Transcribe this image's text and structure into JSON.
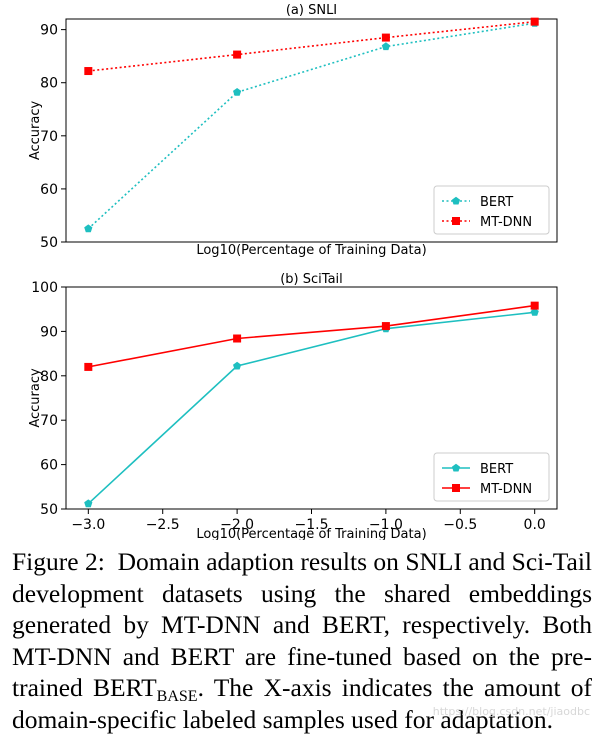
{
  "chart_data": [
    {
      "type": "line",
      "title": "(a) SNLI",
      "xlabel": "Log10(Percentage of Training Data)",
      "ylabel": "Accuracy",
      "x": [
        -3.0,
        -2.0,
        -1.0,
        0.0
      ],
      "xlim": [
        -3.15,
        0.15
      ],
      "ylim": [
        50,
        92
      ],
      "xticks": [],
      "yticks": [
        50,
        60,
        70,
        80,
        90
      ],
      "line_style": "dotted",
      "legend_position": "lower right",
      "grid": false,
      "series": [
        {
          "name": "BERT",
          "values": [
            52.5,
            78.2,
            86.8,
            91.2
          ],
          "color": "#1ebfc0",
          "marker": "pentagon"
        },
        {
          "name": "MT-DNN",
          "values": [
            82.2,
            85.3,
            88.5,
            91.5
          ],
          "color": "#ff0000",
          "marker": "square"
        }
      ]
    },
    {
      "type": "line",
      "title": "(b) SciTail",
      "xlabel": "Log10(Percentage of Training Data)",
      "ylabel": "Accuracy",
      "x": [
        -3.0,
        -2.0,
        -1.0,
        0.0
      ],
      "xlim": [
        -3.15,
        0.15
      ],
      "ylim": [
        50,
        100
      ],
      "xticks": [
        -3.0,
        -2.5,
        -2.0,
        -1.5,
        -1.0,
        -0.5,
        0.0
      ],
      "xtick_labels": [
        "−3.0",
        "−2.5",
        "−2.0",
        "−1.5",
        "−1.0",
        "−0.5",
        "0.0"
      ],
      "yticks": [
        50,
        60,
        70,
        80,
        90,
        100
      ],
      "line_style": "solid",
      "legend_position": "lower right",
      "grid": false,
      "series": [
        {
          "name": "BERT",
          "values": [
            51.2,
            82.2,
            90.6,
            94.3
          ],
          "color": "#1ebfc0",
          "marker": "pentagon"
        },
        {
          "name": "MT-DNN",
          "values": [
            82.0,
            88.4,
            91.2,
            95.8
          ],
          "color": "#ff0000",
          "marker": "square"
        }
      ]
    }
  ],
  "caption": {
    "lead": "Figure 2:  Domain adaption results on SNLI and Sci-Tail development datasets using the shared embeddings generated by MT-DNN and BERT, respectively. Both MT-DNN and BERT are fine-tuned based on the pre-trained BERT",
    "sub": "BASE",
    "tail": ". The X-axis indicates the amount of domain-specific labeled samples used for adaptation."
  },
  "watermark": "https://blog.csdn.net/jiaodbc"
}
